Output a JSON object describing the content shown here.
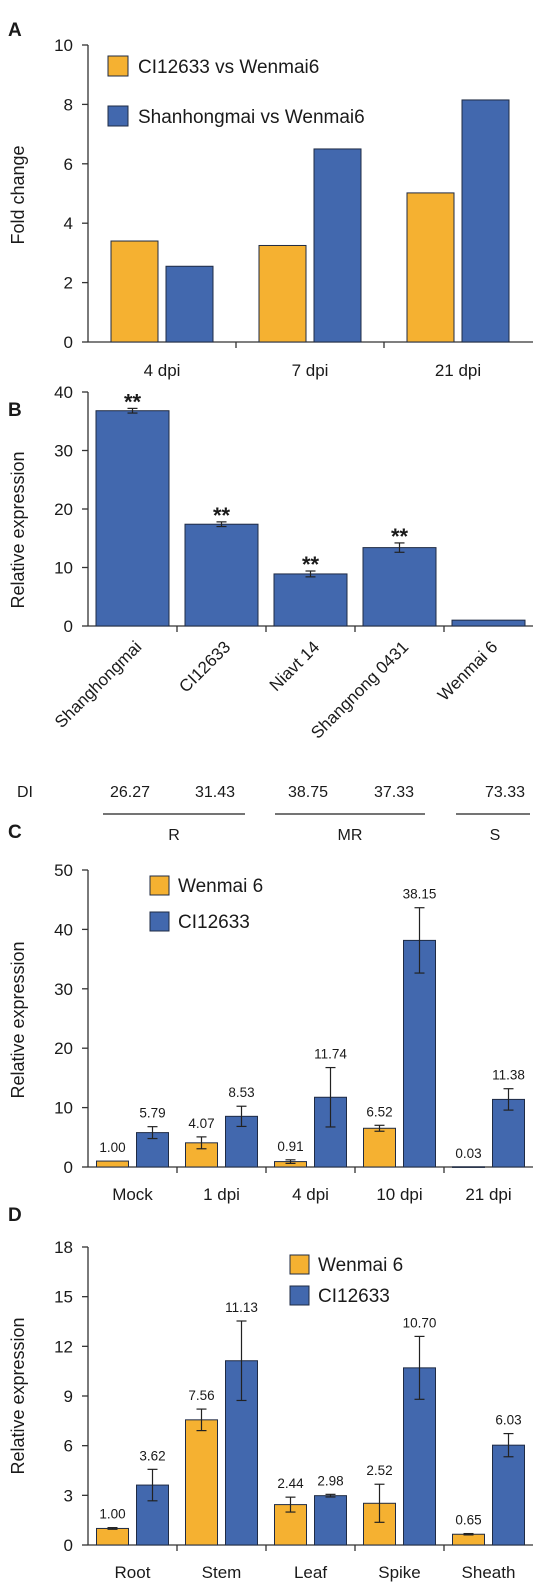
{
  "colors": {
    "orange": "#F5B131",
    "blue": "#4268AE",
    "edge": "#1f2b44",
    "axis": "#333333"
  },
  "chart_data": [
    {
      "panel": "A",
      "type": "bar",
      "ylabel": "Fold change",
      "ylim": [
        0,
        10
      ],
      "yticks": [
        "0",
        "2",
        "4",
        "6",
        "8",
        "10"
      ],
      "categories": [
        "4 dpi",
        "7 dpi",
        "21 dpi"
      ],
      "legend_position": "top-left",
      "series": [
        {
          "name": "CI12633 vs Wenmai6",
          "color": "orange",
          "values": [
            3.4,
            3.25,
            5.02
          ]
        },
        {
          "name": "Shanhongmai vs Wenmai6",
          "color": "blue",
          "values": [
            2.55,
            6.5,
            8.15
          ]
        }
      ]
    },
    {
      "panel": "B",
      "type": "bar",
      "ylabel": "Relative expression",
      "ylim": [
        0,
        40
      ],
      "yticks": [
        "0",
        "10",
        "20",
        "30",
        "40"
      ],
      "categories": [
        "Shanghongmai",
        "CI12633",
        "Niavt 14",
        "Shangnong 0431",
        "Wenmai 6"
      ],
      "series": [
        {
          "color": "blue",
          "values": [
            36.8,
            17.4,
            8.9,
            13.4,
            1.0
          ],
          "errors": [
            0.4,
            0.4,
            0.5,
            0.8,
            0
          ],
          "annotations": [
            "**",
            "**",
            "**",
            "**",
            ""
          ]
        }
      ],
      "di": {
        "label": "DI",
        "values": [
          "26.27",
          "31.43",
          "38.75",
          "37.33",
          "73.33"
        ],
        "groups": [
          "R",
          "MR",
          "S"
        ]
      }
    },
    {
      "panel": "C",
      "type": "bar",
      "ylabel": "Relative expression",
      "ylim": [
        0,
        50
      ],
      "yticks": [
        "0",
        "10",
        "20",
        "30",
        "40",
        "50"
      ],
      "categories": [
        "Mock",
        "1 dpi",
        "4 dpi",
        "10 dpi",
        "21 dpi"
      ],
      "legend_position": "top-left",
      "series": [
        {
          "name": "Wenmai 6",
          "color": "orange",
          "values": [
            1.0,
            4.07,
            0.91,
            6.52,
            0.03
          ],
          "errors": [
            0,
            1.0,
            0.3,
            0.5,
            0
          ],
          "labels": [
            "1.00",
            "4.07",
            "0.91",
            "6.52",
            "0.03"
          ]
        },
        {
          "name": "CI12633",
          "color": "blue",
          "values": [
            5.79,
            8.53,
            11.74,
            38.15,
            11.38
          ],
          "errors": [
            1.0,
            1.7,
            5.0,
            5.5,
            1.8
          ],
          "labels": [
            "5.79",
            "8.53",
            "11.74",
            "38.15",
            "11.38"
          ]
        }
      ]
    },
    {
      "panel": "D",
      "type": "bar",
      "ylabel": "Relative expression",
      "ylim": [
        0,
        18
      ],
      "yticks": [
        "0",
        "3",
        "6",
        "9",
        "12",
        "15",
        "18"
      ],
      "categories": [
        "Root",
        "Stem",
        "Leaf",
        "Spike",
        "Sheath"
      ],
      "legend_position": "top-center",
      "series": [
        {
          "name": "Wenmai 6",
          "color": "orange",
          "values": [
            1.0,
            7.56,
            2.44,
            2.52,
            0.65
          ],
          "errors": [
            0.05,
            0.65,
            0.45,
            1.15,
            0.04
          ],
          "labels": [
            "1.00",
            "7.56",
            "2.44",
            "2.52",
            "0.65"
          ]
        },
        {
          "name": "CI12633",
          "color": "blue",
          "values": [
            3.62,
            11.13,
            2.98,
            10.7,
            6.03
          ],
          "errors": [
            0.95,
            2.4,
            0.08,
            1.9,
            0.7
          ],
          "labels": [
            "3.62",
            "11.13",
            "2.98",
            "10.70",
            "6.03"
          ]
        }
      ]
    }
  ]
}
